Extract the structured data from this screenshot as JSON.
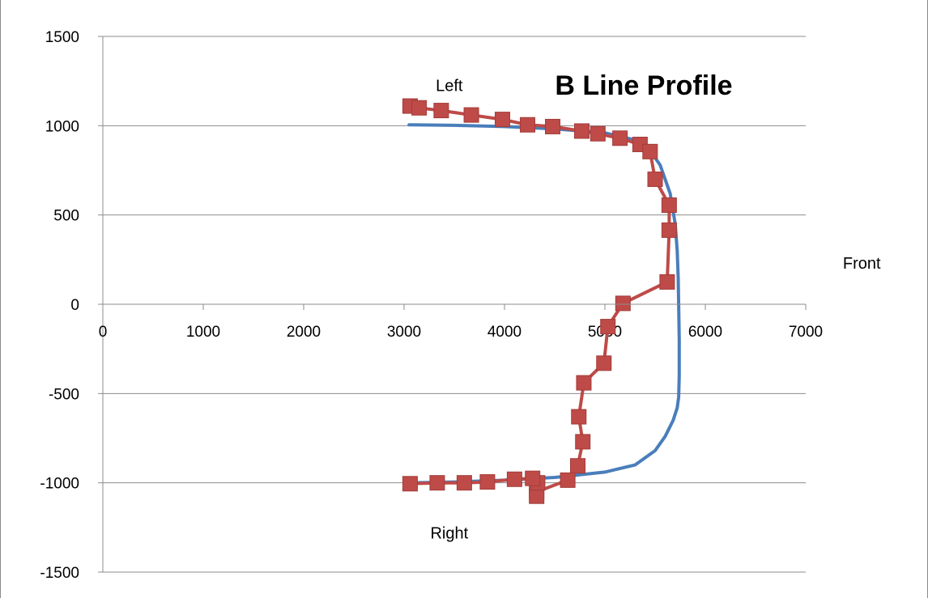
{
  "chart_data": {
    "type": "scatter",
    "title": "B Line Profile",
    "xlabel": "",
    "ylabel": "",
    "xlim": [
      0,
      7000
    ],
    "ylim": [
      -1500,
      1500
    ],
    "x_ticks": [
      0,
      1000,
      2000,
      3000,
      4000,
      5000,
      6000,
      7000
    ],
    "y_ticks": [
      -1500,
      -1000,
      -500,
      0,
      500,
      1000,
      1500
    ],
    "x_tick_labels": [
      "0",
      "1000",
      "2000",
      "3000",
      "4000",
      "5000",
      "6000",
      "7000"
    ],
    "y_tick_labels": [
      "-1500",
      "-1000",
      "-500",
      "0",
      "500",
      "1000",
      "1500"
    ],
    "grid": "horizontal",
    "legend": "none",
    "annotations": [
      {
        "text": "Left",
        "x": 3450,
        "y": 1225
      },
      {
        "text": "Right",
        "x": 3450,
        "y": -1280
      },
      {
        "text": "Front",
        "x": 7370,
        "y": 230
      }
    ],
    "series": [
      {
        "color": "#4a7ebb",
        "marker": "none",
        "x": [
          3050,
          3500,
          4000,
          4500,
          5000,
          5300,
          5450,
          5550,
          5650,
          5700,
          5720,
          5730,
          5735,
          5740,
          5740,
          5735,
          5720,
          5680,
          5600,
          5500,
          5400,
          5300,
          5000,
          4500,
          4000,
          3500,
          3050
        ],
        "y": [
          1005,
          1002,
          995,
          982,
          960,
          920,
          860,
          780,
          620,
          450,
          300,
          150,
          0,
          -200,
          -400,
          -520,
          -580,
          -650,
          -740,
          -820,
          -860,
          -900,
          -940,
          -970,
          -985,
          -995,
          -1000
        ]
      },
      {
        "color": "#be4b48",
        "marker": "square",
        "x": [
          3060,
          3150,
          3370,
          3670,
          3980,
          4230,
          4480,
          4770,
          4930,
          5150,
          5350,
          5450,
          5500,
          5640,
          5640,
          5620,
          5180,
          5030,
          4990,
          4790,
          4740,
          4780,
          4730,
          4630,
          4320,
          4320,
          4330,
          4280,
          4100,
          3830,
          3600,
          3330,
          3060
        ],
        "y": [
          1110,
          1100,
          1085,
          1060,
          1035,
          1005,
          995,
          970,
          955,
          930,
          895,
          855,
          700,
          555,
          415,
          125,
          5,
          -125,
          -330,
          -440,
          -630,
          -770,
          -905,
          -985,
          -1050,
          -1075,
          -1000,
          -975,
          -980,
          -995,
          -1000,
          -1000,
          -1005
        ]
      }
    ]
  }
}
